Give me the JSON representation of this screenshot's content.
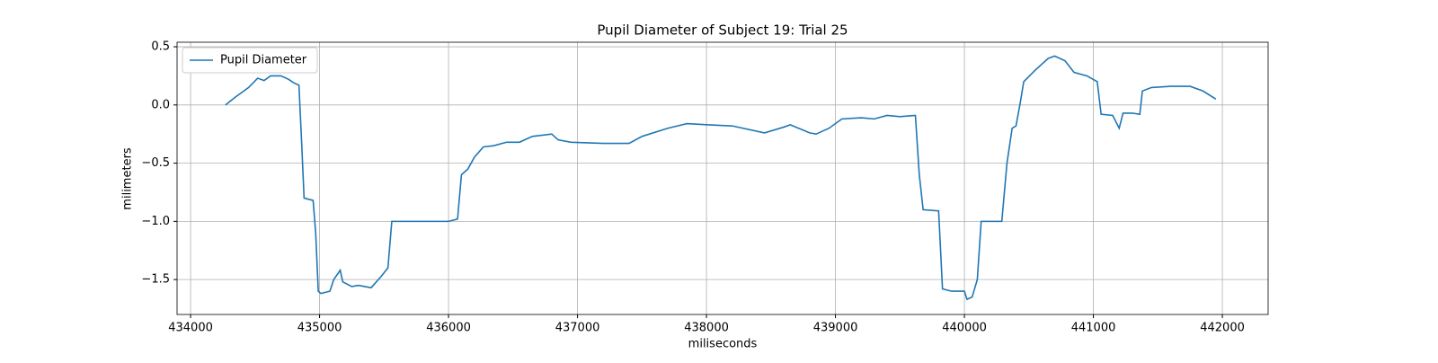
{
  "chart_data": {
    "type": "line",
    "title": "Pupil Diameter of Subject 19: Trial 25",
    "x_label": "miliseconds",
    "y_label": "milimeters",
    "x": [
      434270,
      434350,
      434450,
      434520,
      434570,
      434620,
      434700,
      434760,
      434800,
      434840,
      434860,
      434880,
      434950,
      434970,
      434990,
      435010,
      435080,
      435110,
      435160,
      435180,
      435250,
      435300,
      435400,
      435480,
      435530,
      435560,
      435700,
      436000,
      436070,
      436100,
      436150,
      436200,
      436270,
      436350,
      436450,
      436550,
      436650,
      436800,
      436850,
      436950,
      437200,
      437400,
      437500,
      437700,
      437850,
      438000,
      438200,
      438450,
      438600,
      438650,
      438800,
      438850,
      438950,
      439050,
      439200,
      439300,
      439400,
      439500,
      439620,
      439650,
      439680,
      439800,
      439830,
      439900,
      440000,
      440020,
      440060,
      440100,
      440130,
      440200,
      440290,
      440330,
      440370,
      440400,
      440430,
      440460,
      440550,
      440650,
      440700,
      440780,
      440850,
      440950,
      441030,
      441060,
      441150,
      441200,
      441230,
      441300,
      441360,
      441380,
      441450,
      441600,
      441750,
      441850,
      441950
    ],
    "series": [
      {
        "name": "Pupil Diameter",
        "color": "#1f77b4",
        "values": [
          0.0,
          0.07,
          0.15,
          0.23,
          0.21,
          0.25,
          0.25,
          0.22,
          0.19,
          0.17,
          -0.3,
          -0.8,
          -0.82,
          -1.1,
          -1.6,
          -1.62,
          -1.6,
          -1.5,
          -1.42,
          -1.52,
          -1.56,
          -1.55,
          -1.57,
          -1.47,
          -1.4,
          -1.0,
          -1.0,
          -1.0,
          -0.98,
          -0.6,
          -0.55,
          -0.45,
          -0.36,
          -0.35,
          -0.32,
          -0.32,
          -0.27,
          -0.25,
          -0.3,
          -0.32,
          -0.33,
          -0.33,
          -0.27,
          -0.2,
          -0.16,
          -0.17,
          -0.18,
          -0.24,
          -0.19,
          -0.17,
          -0.24,
          -0.25,
          -0.2,
          -0.12,
          -0.11,
          -0.12,
          -0.09,
          -0.1,
          -0.09,
          -0.6,
          -0.9,
          -0.91,
          -1.58,
          -1.6,
          -1.6,
          -1.67,
          -1.65,
          -1.5,
          -1.0,
          -1.0,
          -1.0,
          -0.5,
          -0.2,
          -0.18,
          0.0,
          0.2,
          0.3,
          0.4,
          0.42,
          0.38,
          0.28,
          0.25,
          0.2,
          -0.08,
          -0.09,
          -0.2,
          -0.07,
          -0.07,
          -0.08,
          0.12,
          0.15,
          0.16,
          0.16,
          0.12,
          0.05
        ]
      }
    ],
    "xlim": [
      433895,
      442355
    ],
    "ylim": [
      -1.8,
      0.539
    ],
    "xticks": [
      434000,
      435000,
      436000,
      437000,
      438000,
      439000,
      440000,
      441000,
      442000
    ],
    "yticks": [
      {
        "value": -1.5,
        "label": "−1.5"
      },
      {
        "value": -1.0,
        "label": "−1.0"
      },
      {
        "value": -0.5,
        "label": "−0.5"
      },
      {
        "value": 0.0,
        "label": "0.0"
      },
      {
        "value": 0.5,
        "label": "0.5"
      }
    ],
    "grid": true,
    "legend": "upper left"
  }
}
